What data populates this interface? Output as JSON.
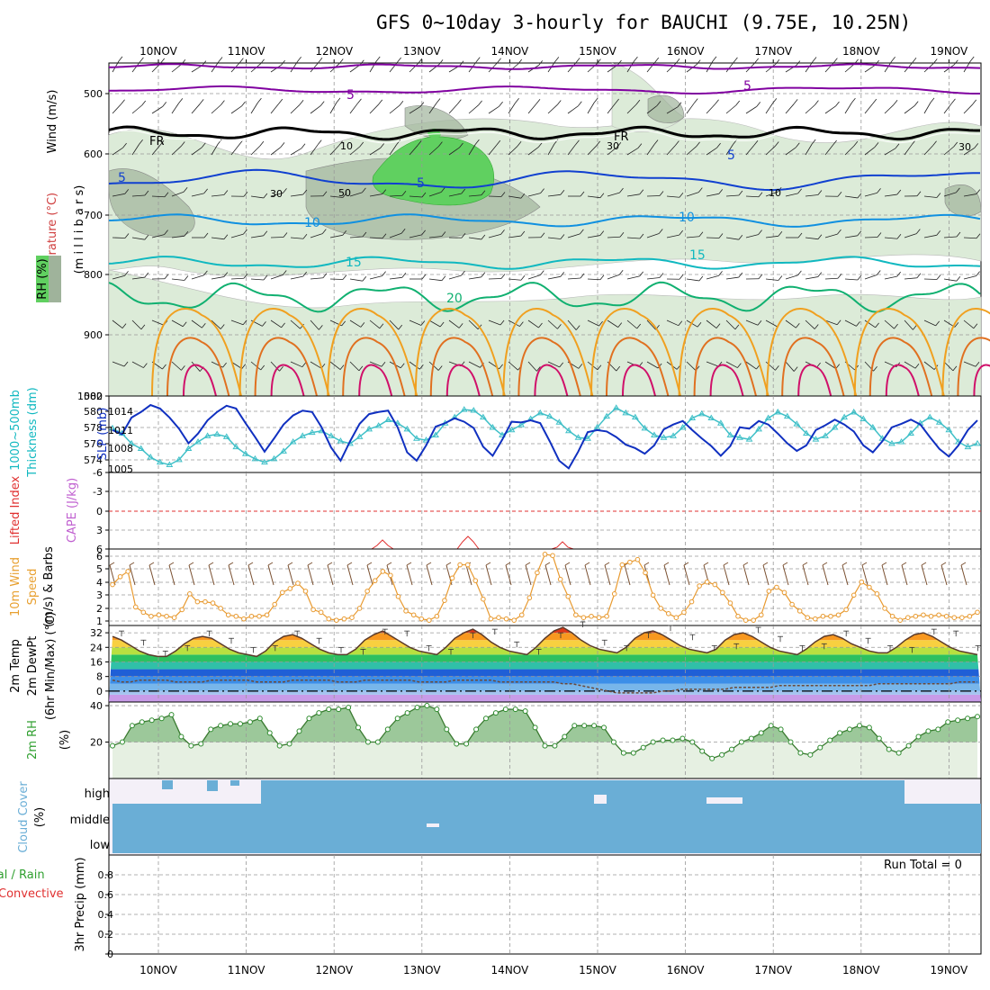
{
  "title": "GFS 0~10day 3-hourly for BAUCHI (9.75E, 10.25N)",
  "dates": [
    "10NOV",
    "11NOV",
    "12NOV",
    "13NOV",
    "14NOV",
    "15NOV",
    "16NOV",
    "17NOV",
    "18NOV",
    "19NOV"
  ],
  "colors": {
    "purple": "#8000a0",
    "black": "#000000",
    "blue": "#1040d0",
    "lightblue": "#1090e0",
    "teal": "#10b8c0",
    "green": "#10b070",
    "orange": "#f0a020",
    "darkorange": "#e07020",
    "magenta": "#d0106a",
    "rh_fill": "#dcebd8",
    "rh_dark": "#9fb39b",
    "rh_green": "#60d060",
    "cloud": "#6aaed6",
    "cloud_bg": "#f4f0f8",
    "lifted": "#e03030",
    "windspd": "#e89a30",
    "thick": "#40c0c8",
    "slp": "#1030c0",
    "rh2m": "#30a030"
  },
  "panels": {
    "upper": {
      "ylabel_wind": "Wind (m/s)",
      "ylabel_temp": "Temperature (°C)",
      "ylabel_rh": "RH (%)",
      "ylabel_mb": "(m i l l i b a r s)",
      "yticks": [
        "500",
        "600",
        "700",
        "800",
        "900",
        "1000"
      ],
      "contour_labels": {
        "purple5": "5",
        "fr1": "FR",
        "fr2": "FR",
        "blue5a": "5",
        "blue5b": "5",
        "blue5c": "5",
        "blue10a": "10",
        "blue10b": "10",
        "teal15a": "15",
        "teal15b": "15",
        "green20": "20",
        "rh30a": "30",
        "rh30b": "30",
        "rh30c": "30",
        "rh10a": "10",
        "rh10b": "10",
        "rh50": "50"
      }
    },
    "slp": {
      "ylabel_a": "1000~500mb",
      "ylabel_b": "Thickness (dm)",
      "ylabel_c": "SLP (mb)",
      "yticks_left": [
        "582",
        "580",
        "578",
        "576",
        "574"
      ],
      "yticks_right": [
        "1014",
        "1011",
        "1008",
        "1005"
      ]
    },
    "li": {
      "ylabel_a": "Lifted Index",
      "ylabel_b": "CAPE (J/kg)",
      "yticks": [
        "-6",
        "-3",
        "0",
        "3",
        "6"
      ]
    },
    "wind": {
      "ylabel_a": "10m Wind",
      "ylabel_b": "Speed",
      "ylabel_c": "(m/s) & Barbs",
      "yticks": [
        "6",
        "5",
        "4",
        "3",
        "2",
        "1"
      ]
    },
    "temp": {
      "ylabel_a": "2m Temp",
      "ylabel_b": "2m DewPt",
      "ylabel_c": "(6hr Min/Max) (°C)",
      "yticks": [
        "32",
        "24",
        "16",
        "8",
        "0"
      ]
    },
    "rh2m": {
      "ylabel_a": "2m RH",
      "ylabel_b": "(%)",
      "yticks": [
        "40",
        "20"
      ]
    },
    "cloud": {
      "ylabel_a": "Cloud Cover",
      "ylabel_b": "(%)",
      "levels": [
        "high",
        "middle",
        "low"
      ]
    },
    "precip": {
      "ylabel_a": "Total / Rain",
      "ylabel_b": "Convective",
      "ylabel_c": "3hr Precip (mm)",
      "yticks": [
        "0.8",
        "0.6",
        "0.4",
        "0.2",
        "0"
      ],
      "run_total": "Run Total = 0"
    }
  },
  "chart_data": [
    {
      "type": "line",
      "name": "SLP / Thickness",
      "series": [
        {
          "name": "SLP (mb)",
          "values": [
            1010.6,
            1010.0,
            1012.4,
            1013.2,
            1014.2,
            1013.7,
            1012.4,
            1010.8,
            1008.7,
            1010.1,
            1012.0,
            1013.2,
            1014.1,
            1013.7,
            1011.6,
            1009.6,
            1007.5,
            1009.4,
            1011.4,
            1012.7,
            1013.4,
            1013.2,
            1011.0,
            1008.1,
            1006.2,
            1009.0,
            1011.5,
            1012.9,
            1013.2,
            1013.4,
            1011.0,
            1007.4,
            1006.2,
            1008.4,
            1011.1,
            1011.6,
            1012.3,
            1011.8,
            1010.9,
            1008.2,
            1006.9,
            1009.2,
            1011.8,
            1011.7,
            1012.0,
            1011.6,
            1009.0,
            1006.2,
            1005.1,
            1007.5,
            1010.3,
            1010.6,
            1010.4,
            1009.6,
            1008.5,
            1008.0,
            1007.2,
            1008.4,
            1010.7,
            1011.4,
            1011.9,
            1010.6,
            1009.4,
            1008.3,
            1006.9,
            1008.3,
            1011.0,
            1010.8,
            1011.9,
            1011.4,
            1010.1,
            1008.7,
            1007.6,
            1008.4,
            1010.6,
            1011.3,
            1012.1,
            1011.4,
            1010.4,
            1008.4,
            1007.4,
            1009.0,
            1011.0,
            1011.5,
            1012.1,
            1011.4,
            1009.6,
            1007.9,
            1006.8,
            1008.4,
            1010.6,
            1012.0
          ]
        },
        {
          "name": "1000~500mb Thickness (dm)",
          "values": [
            578.2,
            577.6,
            576.4,
            575.8,
            574.8,
            574.2,
            573.9,
            574.5,
            575.8,
            576.6,
            577.3,
            577.5,
            577.2,
            576.0,
            575.2,
            574.6,
            574.2,
            574.6,
            575.5,
            576.6,
            577.3,
            577.7,
            577.9,
            577.3,
            576.7,
            576.4,
            577.2,
            578.1,
            578.5,
            579.2,
            578.8,
            578.1,
            577.0,
            576.8,
            577.4,
            578.8,
            579.5,
            580.4,
            580.3,
            579.5,
            578.3,
            577.4,
            578.0,
            578.6,
            579.3,
            580.0,
            579.6,
            578.9,
            577.9,
            577.1,
            577.0,
            578.3,
            579.6,
            580.6,
            580.0,
            579.5,
            578.2,
            577.4,
            577.1,
            577.3,
            578.3,
            579.4,
            579.9,
            579.4,
            578.8,
            577.4,
            577.1,
            576.9,
            578.1,
            579.4,
            580.1,
            579.6,
            578.7,
            577.6,
            576.9,
            577.3,
            578.3,
            579.5,
            580.1,
            579.3,
            578.3,
            577.0,
            576.4,
            576.6,
            577.6,
            578.8,
            579.5,
            578.9,
            578.0,
            576.6,
            576.0,
            576.4
          ]
        }
      ],
      "ylim_left": [
        573,
        582
      ],
      "ylim_right": [
        1004.5,
        1015.5
      ]
    },
    {
      "type": "line",
      "name": "10m Wind Speed (m/s)",
      "series": [
        {
          "name": "10m Wind Speed",
          "values": [
            3.9,
            4.5,
            4.9,
            2.2,
            1.8,
            1.5,
            1.6,
            1.5,
            1.4,
            2.0,
            3.2,
            2.6,
            2.6,
            2.5,
            2.1,
            1.6,
            1.5,
            1.3,
            1.5,
            1.5,
            1.6,
            2.4,
            3.3,
            3.6,
            4.0,
            3.4,
            2.0,
            1.8,
            1.3,
            1.2,
            1.3,
            1.4,
            2.1,
            3.4,
            4.2,
            4.9,
            4.6,
            3.0,
            1.9,
            1.6,
            1.3,
            1.2,
            1.5,
            2.7,
            4.4,
            5.4,
            5.4,
            4.2,
            2.8,
            1.3,
            1.4,
            1.3,
            1.2,
            1.6,
            2.9,
            4.8,
            6.2,
            6.1,
            4.3,
            3.0,
            1.6,
            1.4,
            1.5,
            1.4,
            1.5,
            3.2,
            5.4,
            5.6,
            5.8,
            4.8,
            3.1,
            2.1,
            1.7,
            1.4,
            1.8,
            2.6,
            3.8,
            4.1,
            3.9,
            3.3,
            2.5,
            1.5,
            1.2,
            1.2,
            1.6,
            3.4,
            3.7,
            3.3,
            2.4,
            1.9,
            1.4,
            1.3,
            1.5,
            1.5,
            1.6,
            2.0,
            3.1,
            4.1,
            3.7,
            3.2,
            2.1,
            1.5,
            1.2,
            1.4,
            1.5,
            1.6,
            1.5,
            1.6,
            1.5,
            1.4,
            1.4,
            1.5,
            1.8
          ]
        }
      ],
      "ylim": [
        0.8,
        6.6
      ]
    },
    {
      "type": "line",
      "name": "2m RH (%)",
      "series": [
        {
          "name": "2m RH",
          "values": [
            18,
            20,
            29,
            31,
            32,
            33,
            35,
            23,
            18,
            19,
            27,
            29,
            30,
            30,
            31,
            33,
            25,
            18,
            19,
            26,
            33,
            36,
            38,
            38,
            39,
            28,
            20,
            20,
            27,
            33,
            36,
            39,
            40,
            38,
            27,
            19,
            19,
            27,
            33,
            36,
            38,
            38,
            37,
            28,
            18,
            18,
            23,
            29,
            29,
            29,
            28,
            20,
            14,
            14,
            17,
            20,
            21,
            21,
            22,
            20,
            15,
            11,
            13,
            16,
            20,
            22,
            25,
            29,
            27,
            20,
            14,
            13,
            17,
            21,
            25,
            27,
            29,
            28,
            22,
            16,
            14,
            18,
            23,
            26,
            27,
            31,
            32,
            33,
            34
          ]
        }
      ],
      "ylim": [
        0,
        42
      ]
    },
    {
      "type": "area",
      "name": "2m Temp (°C)",
      "series": [
        {
          "name": "2m Temp",
          "values": [
            30,
            28,
            25,
            22,
            20,
            19,
            19,
            22,
            26,
            29,
            30,
            29,
            26,
            23,
            21,
            20,
            19,
            22,
            27,
            30,
            31,
            29,
            26,
            23,
            21,
            20,
            20,
            23,
            28,
            31,
            33,
            30,
            27,
            24,
            22,
            21,
            20,
            24,
            29,
            32,
            34,
            31,
            27,
            24,
            22,
            21,
            20,
            24,
            29,
            33,
            35,
            32,
            28,
            25,
            23,
            22,
            21,
            24,
            29,
            32,
            33,
            31,
            28,
            25,
            23,
            22,
            21,
            23,
            28,
            31,
            32,
            30,
            27,
            24,
            22,
            21,
            20,
            23,
            27,
            30,
            31,
            29,
            26,
            24,
            22,
            21,
            21,
            24,
            28,
            31,
            32,
            30,
            27,
            24,
            22,
            21,
            20
          ]
        },
        {
          "name": "2m DewPt",
          "values": [
            6,
            5,
            5,
            6,
            6,
            6,
            6,
            5,
            5,
            5,
            5,
            6,
            6,
            6,
            6,
            6,
            5,
            5,
            5,
            5,
            6,
            6,
            6,
            6,
            6,
            5,
            5,
            5,
            6,
            6,
            6,
            6,
            6,
            6,
            5,
            5,
            5,
            5,
            6,
            6,
            6,
            6,
            6,
            5,
            5,
            5,
            5,
            5,
            5,
            5,
            4,
            4,
            3,
            2,
            1,
            0,
            -1,
            -1,
            -1,
            -1,
            -1,
            0,
            0,
            1,
            1,
            1,
            1,
            1,
            1,
            2,
            2,
            2,
            2,
            2,
            3,
            3,
            3,
            3,
            3,
            3,
            3,
            3,
            3,
            3,
            3,
            4,
            4,
            4,
            4,
            4,
            4,
            4,
            4,
            4,
            5,
            5,
            5
          ]
        }
      ],
      "ylim": [
        -6,
        36
      ]
    }
  ]
}
